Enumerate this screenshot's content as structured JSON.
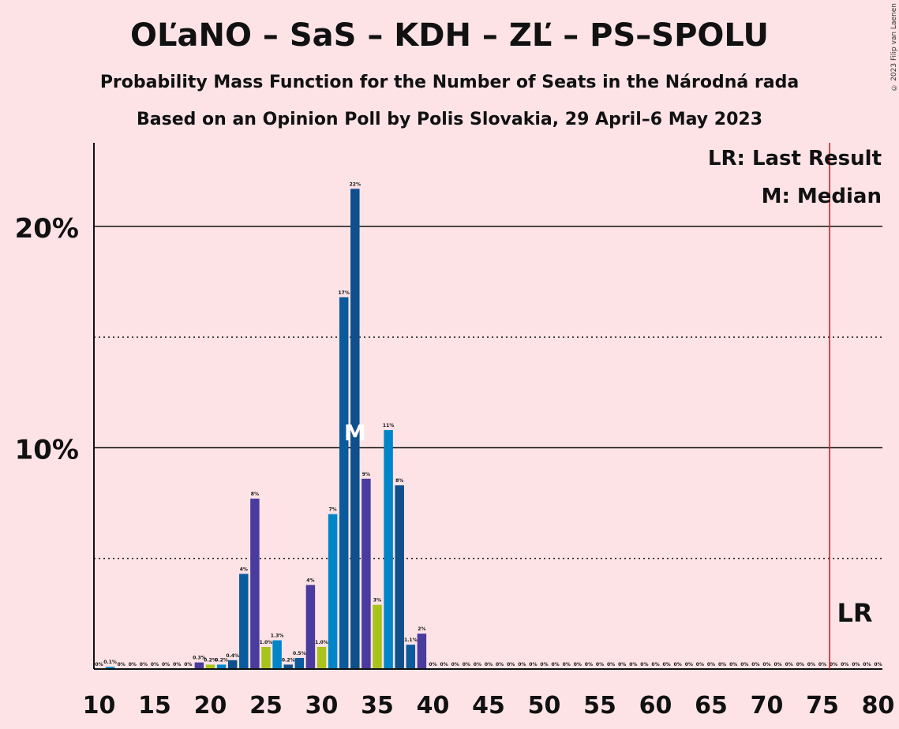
{
  "title": "OĽaNO – SaS – KDH – ZĽ – PS–SPOLU",
  "subtitle": "Probability Mass Function for the Number of Seats in the Národná rada",
  "subtitle2": "Based on an Opinion Poll by Polis Slovakia, 29 April–6 May 2023",
  "copyright": "© 2023 Filip van Laenen",
  "legend": {
    "last_result": "LR: Last Result",
    "median": "M: Median"
  },
  "markers": {
    "median_label": "M",
    "last_result_label": "LR"
  },
  "colors": {
    "background": "#fde3e6",
    "OĽaNO": "#0a5a9c",
    "SaS": "#0085c8",
    "KDH": "#4a3b9e",
    "ZĽ": "#a8c31a",
    "PS-SPOLU": "#0f4f8c",
    "last_result_line": "#cc2222"
  },
  "chart_data": {
    "type": "bar",
    "xlim": [
      10,
      80
    ],
    "ylim": [
      0,
      23.7
    ],
    "xticks": [
      10,
      15,
      20,
      25,
      30,
      35,
      40,
      45,
      50,
      55,
      60,
      65,
      70,
      75,
      80
    ],
    "yticks": [
      {
        "value": 10,
        "label": "10%"
      },
      {
        "value": 20,
        "label": "20%"
      }
    ],
    "minor_gridlines": [
      5,
      15
    ],
    "median": 33,
    "last_result": 76,
    "bars": [
      {
        "x": 10,
        "value": 0.0,
        "label": "0%",
        "color": "#0a5a9c"
      },
      {
        "x": 11,
        "value": 0.1,
        "label": "0.1%",
        "color": "#0085c8"
      },
      {
        "x": 12,
        "value": 0.0,
        "label": "0%",
        "color": "#4a3b9e"
      },
      {
        "x": 13,
        "value": 0.0,
        "label": "0%",
        "color": "#a8c31a"
      },
      {
        "x": 14,
        "value": 0.0,
        "label": "0%",
        "color": "#0f4f8c"
      },
      {
        "x": 15,
        "value": 0.0,
        "label": "0%",
        "color": "#0a5a9c"
      },
      {
        "x": 16,
        "value": 0.0,
        "label": "0%",
        "color": "#0085c8"
      },
      {
        "x": 17,
        "value": 0.0,
        "label": "0%",
        "color": "#4a3b9e"
      },
      {
        "x": 18,
        "value": 0.0,
        "label": "0%",
        "color": "#a8c31a"
      },
      {
        "x": 19,
        "value": 0.3,
        "label": "0.3%",
        "color": "#4a3b9e"
      },
      {
        "x": 20,
        "value": 0.2,
        "label": "0.2%",
        "color": "#a8c31a"
      },
      {
        "x": 21,
        "value": 0.2,
        "label": "0.2%",
        "color": "#0085c8"
      },
      {
        "x": 22,
        "value": 0.4,
        "label": "0.4%",
        "color": "#0f4f8c"
      },
      {
        "x": 23,
        "value": 4.3,
        "label": "4%",
        "color": "#0a5a9c"
      },
      {
        "x": 24,
        "value": 7.7,
        "label": "8%",
        "color": "#4a3b9e"
      },
      {
        "x": 25,
        "value": 1.0,
        "label": "1.0%",
        "color": "#a8c31a"
      },
      {
        "x": 26,
        "value": 1.3,
        "label": "1.3%",
        "color": "#0085c8"
      },
      {
        "x": 27,
        "value": 0.2,
        "label": "0.2%",
        "color": "#0f4f8c"
      },
      {
        "x": 28,
        "value": 0.5,
        "label": "0.5%",
        "color": "#0a5a9c"
      },
      {
        "x": 29,
        "value": 3.8,
        "label": "4%",
        "color": "#4a3b9e"
      },
      {
        "x": 30,
        "value": 1.0,
        "label": "1.0%",
        "color": "#a8c31a"
      },
      {
        "x": 31,
        "value": 7.0,
        "label": "7%",
        "color": "#0085c8"
      },
      {
        "x": 32,
        "value": 16.8,
        "label": "17%",
        "color": "#0a5a9c"
      },
      {
        "x": 33,
        "value": 21.7,
        "label": "22%",
        "color": "#0f4f8c"
      },
      {
        "x": 34,
        "value": 8.6,
        "label": "9%",
        "color": "#4a3b9e"
      },
      {
        "x": 35,
        "value": 2.9,
        "label": "3%",
        "color": "#a8c31a"
      },
      {
        "x": 36,
        "value": 10.8,
        "label": "11%",
        "color": "#0085c8"
      },
      {
        "x": 37,
        "value": 8.3,
        "label": "8%",
        "color": "#0f4f8c"
      },
      {
        "x": 38,
        "value": 1.1,
        "label": "1.1%",
        "color": "#0a5a9c"
      },
      {
        "x": 39,
        "value": 1.6,
        "label": "2%",
        "color": "#4a3b9e"
      },
      {
        "x": 40,
        "value": 0.0,
        "label": "0%",
        "color": "#a8c31a"
      },
      {
        "x": 41,
        "value": 0.0,
        "label": "0%",
        "color": "#0085c8"
      },
      {
        "x": 42,
        "value": 0.0,
        "label": "0%",
        "color": "#0f4f8c"
      },
      {
        "x": 43,
        "value": 0.0,
        "label": "0%",
        "color": "#0a5a9c"
      },
      {
        "x": 44,
        "value": 0.0,
        "label": "0%",
        "color": "#4a3b9e"
      },
      {
        "x": 45,
        "value": 0.0,
        "label": "0%",
        "color": "#a8c31a"
      },
      {
        "x": 46,
        "value": 0.0,
        "label": "0%",
        "color": "#0085c8"
      },
      {
        "x": 47,
        "value": 0.0,
        "label": "0%",
        "color": "#0f4f8c"
      },
      {
        "x": 48,
        "value": 0.0,
        "label": "0%",
        "color": "#0a5a9c"
      },
      {
        "x": 49,
        "value": 0.0,
        "label": "0%",
        "color": "#4a3b9e"
      },
      {
        "x": 50,
        "value": 0.0,
        "label": "0%",
        "color": "#a8c31a"
      },
      {
        "x": 51,
        "value": 0.0,
        "label": "0%",
        "color": "#0085c8"
      },
      {
        "x": 52,
        "value": 0.0,
        "label": "0%",
        "color": "#0f4f8c"
      },
      {
        "x": 53,
        "value": 0.0,
        "label": "0%",
        "color": "#0a5a9c"
      },
      {
        "x": 54,
        "value": 0.0,
        "label": "0%",
        "color": "#4a3b9e"
      },
      {
        "x": 55,
        "value": 0.0,
        "label": "0%",
        "color": "#a8c31a"
      },
      {
        "x": 56,
        "value": 0.0,
        "label": "0%",
        "color": "#0085c8"
      },
      {
        "x": 57,
        "value": 0.0,
        "label": "0%",
        "color": "#0f4f8c"
      },
      {
        "x": 58,
        "value": 0.0,
        "label": "0%",
        "color": "#0a5a9c"
      },
      {
        "x": 59,
        "value": 0.0,
        "label": "0%",
        "color": "#4a3b9e"
      },
      {
        "x": 60,
        "value": 0.0,
        "label": "0%",
        "color": "#a8c31a"
      },
      {
        "x": 61,
        "value": 0.0,
        "label": "0%",
        "color": "#0085c8"
      },
      {
        "x": 62,
        "value": 0.0,
        "label": "0%",
        "color": "#0f4f8c"
      },
      {
        "x": 63,
        "value": 0.0,
        "label": "0%",
        "color": "#0a5a9c"
      },
      {
        "x": 64,
        "value": 0.0,
        "label": "0%",
        "color": "#4a3b9e"
      },
      {
        "x": 65,
        "value": 0.0,
        "label": "0%",
        "color": "#a8c31a"
      },
      {
        "x": 66,
        "value": 0.0,
        "label": "0%",
        "color": "#0085c8"
      },
      {
        "x": 67,
        "value": 0.0,
        "label": "0%",
        "color": "#0f4f8c"
      },
      {
        "x": 68,
        "value": 0.0,
        "label": "0%",
        "color": "#0a5a9c"
      },
      {
        "x": 69,
        "value": 0.0,
        "label": "0%",
        "color": "#4a3b9e"
      },
      {
        "x": 70,
        "value": 0.0,
        "label": "0%",
        "color": "#a8c31a"
      },
      {
        "x": 71,
        "value": 0.0,
        "label": "0%",
        "color": "#0085c8"
      },
      {
        "x": 72,
        "value": 0.0,
        "label": "0%",
        "color": "#0f4f8c"
      },
      {
        "x": 73,
        "value": 0.0,
        "label": "0%",
        "color": "#0a5a9c"
      },
      {
        "x": 74,
        "value": 0.0,
        "label": "0%",
        "color": "#4a3b9e"
      },
      {
        "x": 75,
        "value": 0.0,
        "label": "0%",
        "color": "#a8c31a"
      },
      {
        "x": 76,
        "value": 0.0,
        "label": "0%",
        "color": "#0085c8"
      },
      {
        "x": 77,
        "value": 0.0,
        "label": "0%",
        "color": "#0f4f8c"
      },
      {
        "x": 78,
        "value": 0.0,
        "label": "0%",
        "color": "#0a5a9c"
      },
      {
        "x": 79,
        "value": 0.0,
        "label": "0%",
        "color": "#4a3b9e"
      },
      {
        "x": 80,
        "value": 0.0,
        "label": "0%",
        "color": "#a8c31a"
      }
    ]
  }
}
